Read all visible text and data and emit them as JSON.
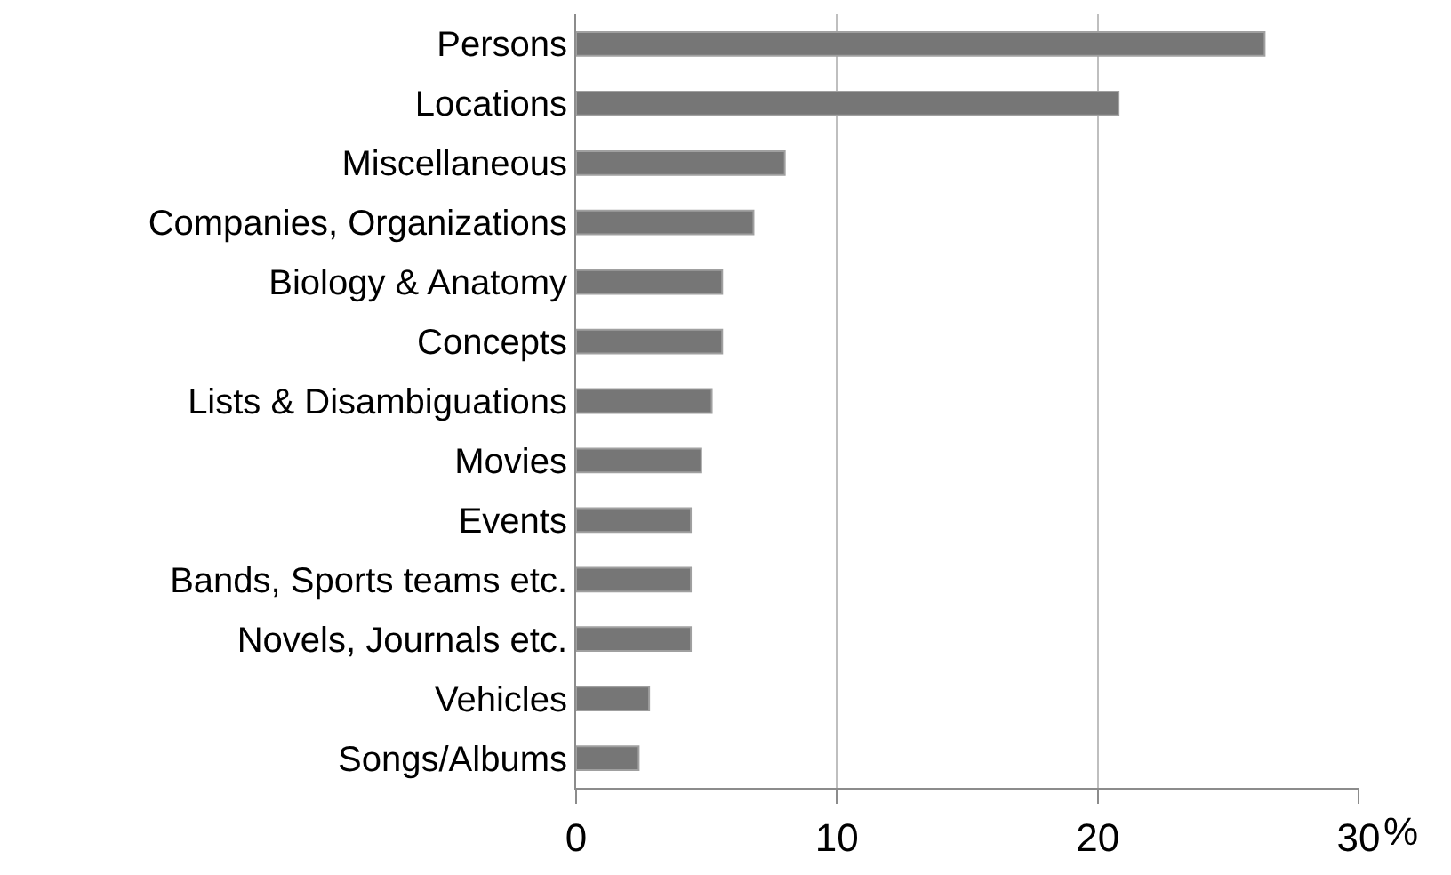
{
  "chart_data": {
    "type": "bar",
    "orientation": "horizontal",
    "categories": [
      "Persons",
      "Locations",
      "Miscellaneous",
      "Companies, Organizations",
      "Biology & Anatomy",
      "Concepts",
      "Lists & Disambiguations",
      "Movies",
      "Events",
      "Bands, Sports teams etc.",
      "Novels, Journals etc.",
      "Vehicles",
      "Songs/Albums"
    ],
    "values": [
      26.4,
      20.8,
      8.0,
      6.8,
      5.6,
      5.6,
      5.2,
      4.8,
      4.4,
      4.4,
      4.4,
      2.8,
      2.4
    ],
    "color": "#767676",
    "xlabel": "%",
    "xlim": [
      0,
      30
    ],
    "xticks": [
      0,
      10,
      20,
      30
    ],
    "grid": "x",
    "legend": false
  }
}
